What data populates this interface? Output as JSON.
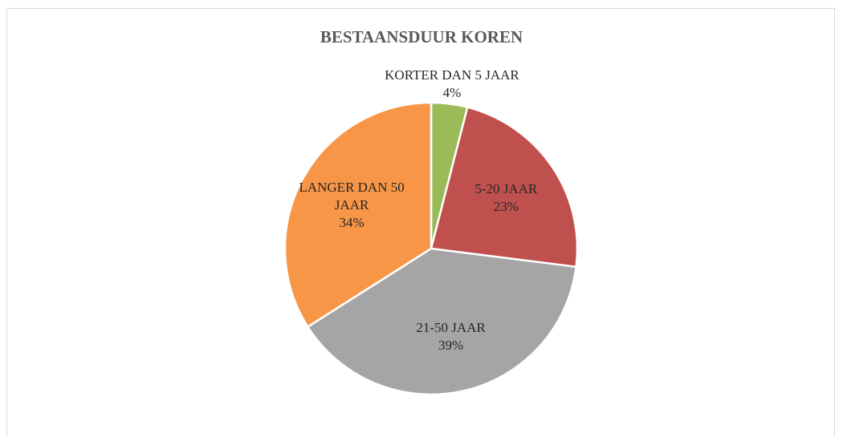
{
  "chart_data": {
    "type": "pie",
    "title": "BESTAANSDUUR KOREN",
    "categories": [
      "KORTER DAN 5 JAAR",
      "5-20 JAAR",
      "21-50 JAAR",
      "LANGER DAN 50 JAAR"
    ],
    "values": [
      4,
      23,
      39,
      34
    ],
    "value_labels": [
      "4%",
      "23%",
      "39%",
      "34%"
    ],
    "colors": [
      "#9bbb59",
      "#c0504d",
      "#a5a5a5",
      "#f79646"
    ]
  }
}
